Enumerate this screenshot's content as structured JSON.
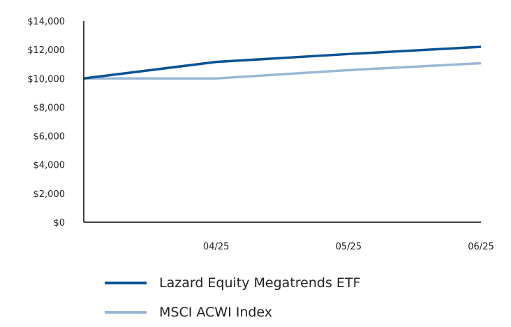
{
  "chart_data": {
    "type": "line",
    "title": "",
    "xlabel": "",
    "ylabel": "",
    "x": [
      "",
      "04/25",
      "05/25",
      "06/25"
    ],
    "ylim": [
      0,
      14000
    ],
    "yticks": [
      "$0",
      "$2,000",
      "$4,000",
      "$6,000",
      "$8,000",
      "$10,000",
      "$12,000",
      "$14,000"
    ],
    "ytick_values": [
      0,
      2000,
      4000,
      6000,
      8000,
      10000,
      12000,
      14000
    ],
    "grid": false,
    "legend_position": "bottom",
    "series": [
      {
        "name": "Lazard Equity Megatrends ETF",
        "color": "#0b5394",
        "values": [
          10000,
          11150,
          11700,
          12200
        ]
      },
      {
        "name": "MSCI ACWI Index",
        "color": "#9ab8d6",
        "values": [
          10000,
          10000,
          10580,
          11060
        ]
      }
    ]
  }
}
